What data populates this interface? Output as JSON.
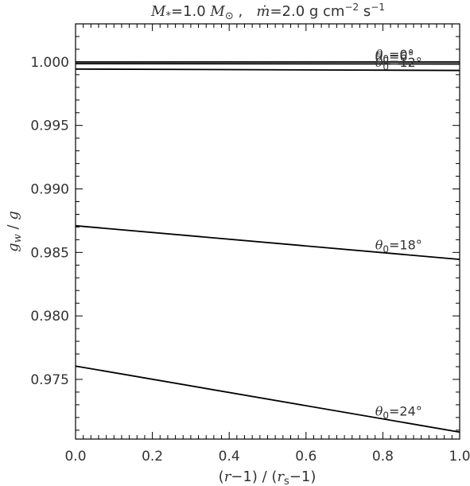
{
  "chart_data": {
    "type": "line",
    "title": {
      "mstar_sym": "M",
      "mstar_sub": "*",
      "mstar_val": "=1.0 ",
      "msun_sym": "M",
      "msun_sub": "⊙",
      "sep": " ,   ",
      "mdot_sym": "ṁ",
      "mdot_val": "=2.0 g cm",
      "sup1": "−2",
      "s_unit": " s",
      "sup2": "−1"
    },
    "xlabel": {
      "open1": "(",
      "r1": "r",
      "mid1": "−1) / (",
      "r2": "r",
      "r2_sub": "s",
      "close": "−1)"
    },
    "ylabel": {
      "g1": "g",
      "g1_sub": "w",
      "slash": " / ",
      "g2": "g"
    },
    "xlim": [
      0.0,
      1.0
    ],
    "ylim": [
      0.9703,
      1.003
    ],
    "x_ticks": [
      "0.0",
      "0.2",
      "0.4",
      "0.6",
      "0.8",
      "1.0"
    ],
    "y_ticks": [
      "0.975",
      "0.980",
      "0.985",
      "0.990",
      "0.995",
      "1.000"
    ],
    "series": [
      {
        "theta": "θ",
        "sub": "0",
        "val": "=0°",
        "x": [
          0.0,
          1.0
        ],
        "y": [
          1.0,
          1.0
        ]
      },
      {
        "theta": "θ",
        "sub": "0",
        "val": "=6°",
        "x": [
          0.0,
          1.0
        ],
        "y": [
          0.99987,
          0.99984
        ]
      },
      {
        "theta": "θ",
        "sub": "0",
        "val": "=12°",
        "x": [
          0.0,
          1.0
        ],
        "y": [
          0.99944,
          0.99933
        ]
      },
      {
        "theta": "θ",
        "sub": "0",
        "val": "=18°",
        "x": [
          0.0,
          1.0
        ],
        "y": [
          0.9871,
          0.98445
        ]
      },
      {
        "theta": "θ",
        "sub": "0",
        "val": "=24°",
        "x": [
          0.0,
          1.0
        ],
        "y": [
          0.97605,
          0.97085
        ]
      }
    ]
  }
}
